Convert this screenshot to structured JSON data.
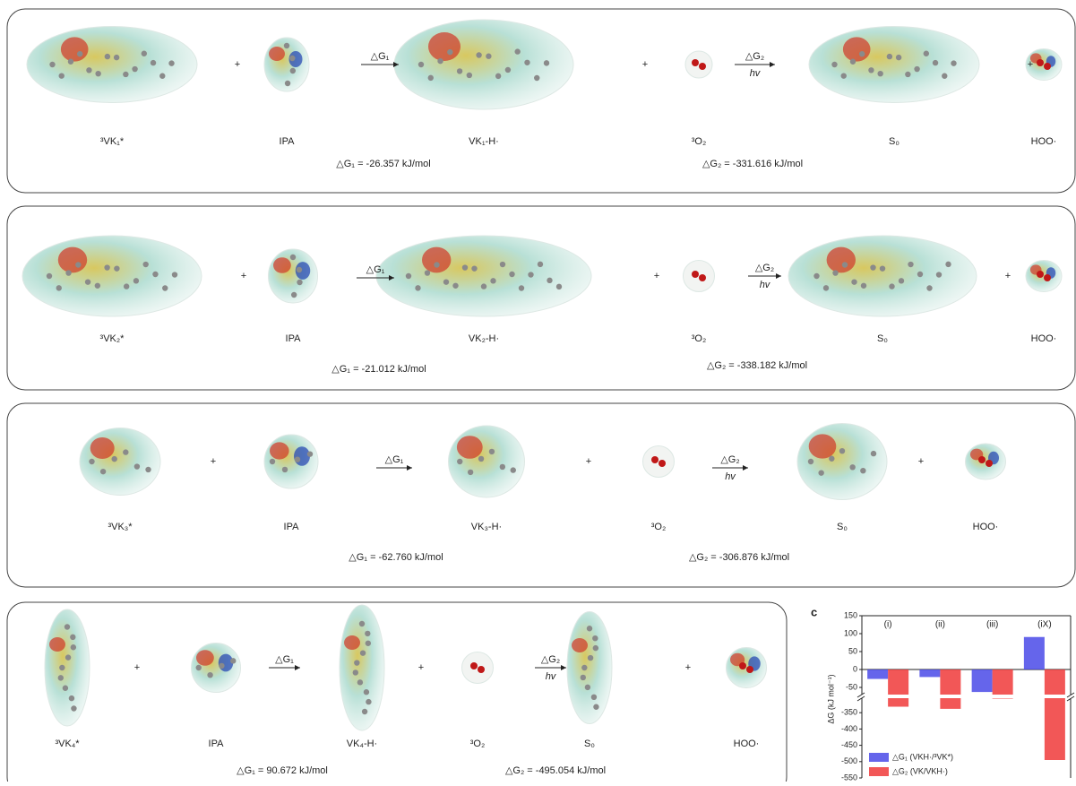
{
  "plus": "+",
  "arrow_labels": [
    "△G₁",
    "△G₂",
    "hv"
  ],
  "panels": [
    {
      "species": [
        "³VK₁*",
        "IPA",
        "VK₁-H·",
        "³O₂",
        "S₀",
        "HOO·"
      ],
      "dG1": "△G₁ = -26.357 kJ/mol",
      "dG2": "△G₂ = -331.616 kJ/mol"
    },
    {
      "species": [
        "³VK₂*",
        "IPA",
        "VK₂-H·",
        "³O₂",
        "S₀",
        "HOO·"
      ],
      "dG1": "△G₁ = -21.012 kJ/mol",
      "dG2": "△G₂ = -338.182 kJ/mol"
    },
    {
      "species": [
        "³VK₃*",
        "IPA",
        "VK₃-H·",
        "³O₂",
        "S₀",
        "HOO·"
      ],
      "dG1": "△G₁ = -62.760 kJ/mol",
      "dG2": "△G₂ = -306.876 kJ/mol"
    },
    {
      "species": [
        "³VK₄*",
        "IPA",
        "VK₄-H·",
        "³O₂",
        "S₀",
        "HOO·"
      ],
      "dG1": "△G₁ = 90.672 kJ/mol",
      "dG2": "△G₂ = -495.054 kJ/mol"
    }
  ],
  "chart_data": {
    "type": "bar",
    "panel_label": "c",
    "y_label": "ΔG (kJ mol⁻¹)",
    "categories": [
      "(i)",
      "(ii)",
      "(iii)",
      "(iX)"
    ],
    "series": [
      {
        "name": "△G₁ (VKH·/³VK*)",
        "color": "#4a4ae8",
        "values": [
          -26.357,
          -21.012,
          -62.76,
          90.672
        ]
      },
      {
        "name": "△G₂ (VK/VKH·)",
        "color": "#f03a3a",
        "values": [
          -331.616,
          -338.182,
          -306.876,
          -495.054
        ]
      }
    ],
    "ylim": [
      -550,
      150
    ],
    "axis_break": [
      -300,
      -75
    ],
    "yticks": [
      150,
      100,
      50,
      0,
      -50,
      -350,
      -400,
      -450,
      -500,
      -550
    ]
  }
}
